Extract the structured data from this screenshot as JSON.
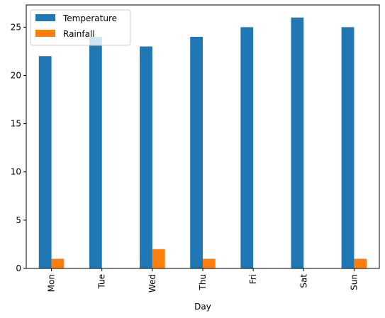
{
  "chart_data": {
    "type": "bar",
    "title": "",
    "xlabel": "Day",
    "ylabel": "",
    "categories": [
      "Mon",
      "Tue",
      "Wed",
      "Thu",
      "Fri",
      "Sat",
      "Sun"
    ],
    "series": [
      {
        "name": "Temperature",
        "color": "#1f77b4",
        "values": [
          22,
          24,
          23,
          24,
          25,
          26,
          25
        ]
      },
      {
        "name": "Rainfall",
        "color": "#ff7f0e",
        "values": [
          1,
          0,
          2,
          1,
          0,
          0,
          1
        ]
      }
    ],
    "ylim": [
      0,
      27.3
    ],
    "yticks": [
      0,
      5,
      10,
      15,
      20,
      25
    ],
    "grid": false,
    "legend_position": "top-left",
    "xtick_rotation": "vertical"
  }
}
